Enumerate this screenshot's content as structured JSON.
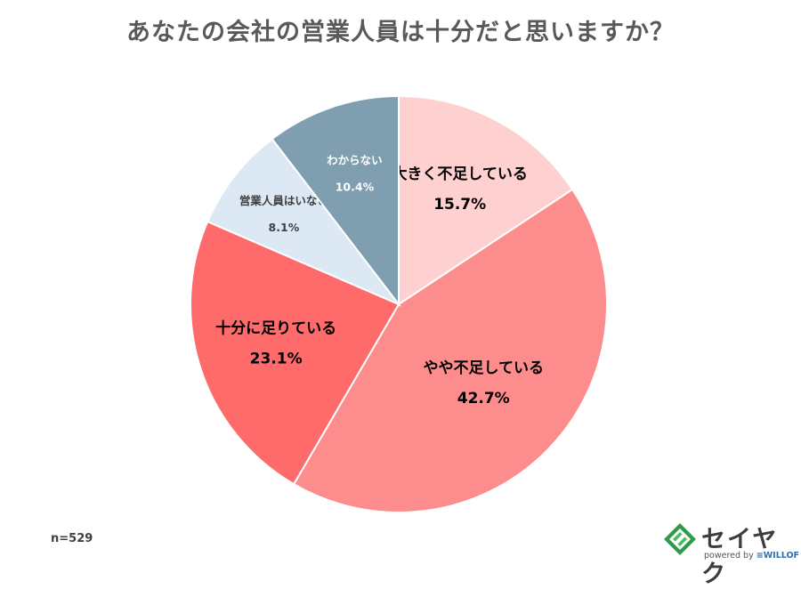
{
  "title": "あなたの会社の営業人員は十分だと思いますか？",
  "sample_size": "n=529",
  "brand": {
    "name": "セイヤク",
    "powered_by": "powered by",
    "partner": "≡WILLOF"
  },
  "chart_data": {
    "type": "pie",
    "start": "top, clockwise",
    "slices": [
      {
        "label": "大きく不足している",
        "value": 15.7,
        "pct_label": "15.7%",
        "color": "#ffd0d0",
        "text_color": "#000000",
        "label_size": "large"
      },
      {
        "label": "やや不足している",
        "value": 42.7,
        "pct_label": "42.7%",
        "color": "#fd8c8c",
        "text_color": "#000000",
        "label_size": "large"
      },
      {
        "label": "十分に足りている",
        "value": 23.1,
        "pct_label": "23.1%",
        "color": "#ff6b6b",
        "text_color": "#000000",
        "label_size": "large"
      },
      {
        "label": "営業人員はいない",
        "value": 8.1,
        "pct_label": "8.1%",
        "color": "#dde8f5",
        "text_color": "#404040",
        "label_size": "small"
      },
      {
        "label": "わからない",
        "value": 10.4,
        "pct_label": "10.4%",
        "color": "#7f9fb0",
        "text_color": "#ffffff",
        "label_size": "small"
      }
    ]
  }
}
